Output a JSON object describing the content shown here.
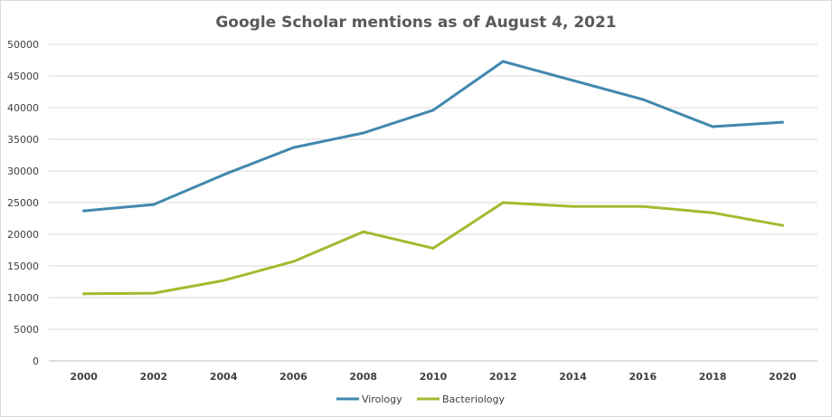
{
  "chart_data": {
    "type": "line",
    "title": "Google Scholar mentions as of August 4, 2021",
    "xlabel": "",
    "ylabel": "",
    "categories": [
      "2000",
      "2002",
      "2004",
      "2006",
      "2008",
      "2010",
      "2012",
      "2014",
      "2016",
      "2018",
      "2020"
    ],
    "ylim": [
      0,
      50000
    ],
    "yticks": [
      "0",
      "5000",
      "10000",
      "15000",
      "20000",
      "25000",
      "30000",
      "35000",
      "40000",
      "45000",
      "50000"
    ],
    "grid": true,
    "legend_position": "bottom",
    "series": [
      {
        "name": "Virology",
        "color": "#4188ae",
        "values": [
          23700,
          24700,
          29400,
          33700,
          36000,
          39600,
          47300,
          44300,
          41300,
          37000,
          37700
        ]
      },
      {
        "name": "Bacteriology",
        "color": "#a5b92f",
        "values": [
          10600,
          10700,
          12700,
          15700,
          20400,
          17800,
          25000,
          24400,
          24400,
          23400,
          21400
        ]
      }
    ]
  }
}
